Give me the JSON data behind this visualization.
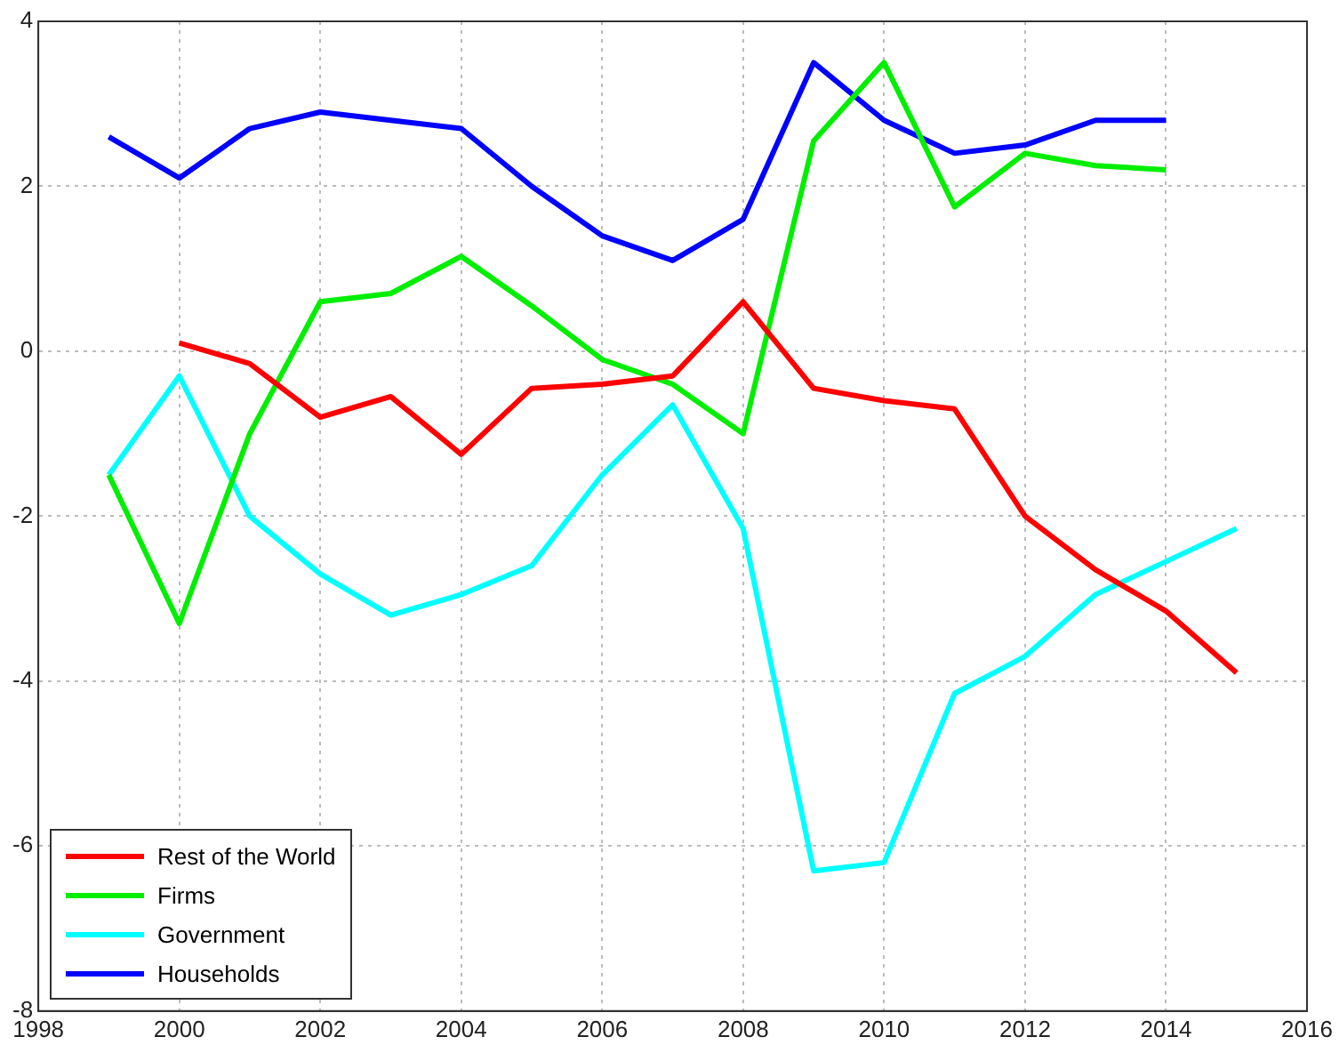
{
  "chart_data": {
    "type": "line",
    "xlim": [
      1998,
      2016
    ],
    "xticks": [
      1998,
      2000,
      2002,
      2004,
      2006,
      2008,
      2010,
      2012,
      2014,
      2016
    ],
    "ylim": [
      -8,
      4
    ],
    "yticks": [
      -8,
      -6,
      -4,
      -2,
      0,
      2,
      4
    ],
    "grid": true,
    "legend": "bottom left",
    "marker": "none",
    "line_style": "solid",
    "series": [
      {
        "name": "Rest of the World",
        "color": "#ff0000",
        "x": [
          2000,
          2001,
          2002,
          2003,
          2004,
          2005,
          2006,
          2007,
          2008,
          2009,
          2010,
          2011,
          2012,
          2013,
          2014,
          2015
        ],
        "values": [
          0.1,
          -0.15,
          -0.8,
          -0.55,
          -1.25,
          -0.45,
          -0.4,
          -0.3,
          0.6,
          -0.45,
          -0.6,
          -0.7,
          -2.0,
          -2.65,
          -3.15,
          -3.9
        ]
      },
      {
        "name": "Firms",
        "color": "#00ee00",
        "x": [
          1999,
          2000,
          2001,
          2002,
          2003,
          2004,
          2005,
          2006,
          2007,
          2008,
          2009,
          2010,
          2011,
          2012,
          2013,
          2014
        ],
        "values": [
          -1.5,
          -3.3,
          -1.0,
          0.6,
          0.7,
          1.15,
          0.55,
          -0.1,
          -0.4,
          -1.0,
          2.55,
          3.5,
          1.75,
          2.4,
          2.25,
          2.2
        ]
      },
      {
        "name": "Government",
        "color": "#00ffff",
        "x": [
          1999,
          2000,
          2001,
          2002,
          2003,
          2004,
          2005,
          2006,
          2007,
          2008,
          2009,
          2010,
          2011,
          2012,
          2013,
          2014,
          2015
        ],
        "values": [
          -1.5,
          -0.3,
          -2.0,
          -2.7,
          -3.2,
          -2.95,
          -2.6,
          -1.5,
          -0.65,
          -2.15,
          -6.3,
          -6.2,
          -4.15,
          -3.7,
          -2.95,
          -2.55,
          -2.15
        ]
      },
      {
        "name": "Households",
        "color": "#0000ff",
        "x": [
          1999,
          2000,
          2001,
          2002,
          2003,
          2004,
          2005,
          2006,
          2007,
          2008,
          2009,
          2010,
          2011,
          2012,
          2013,
          2014
        ],
        "values": [
          2.6,
          2.1,
          2.7,
          2.9,
          2.8,
          2.7,
          2.0,
          1.4,
          1.1,
          1.6,
          3.5,
          2.8,
          2.4,
          2.5,
          2.8,
          2.8
        ]
      }
    ]
  }
}
